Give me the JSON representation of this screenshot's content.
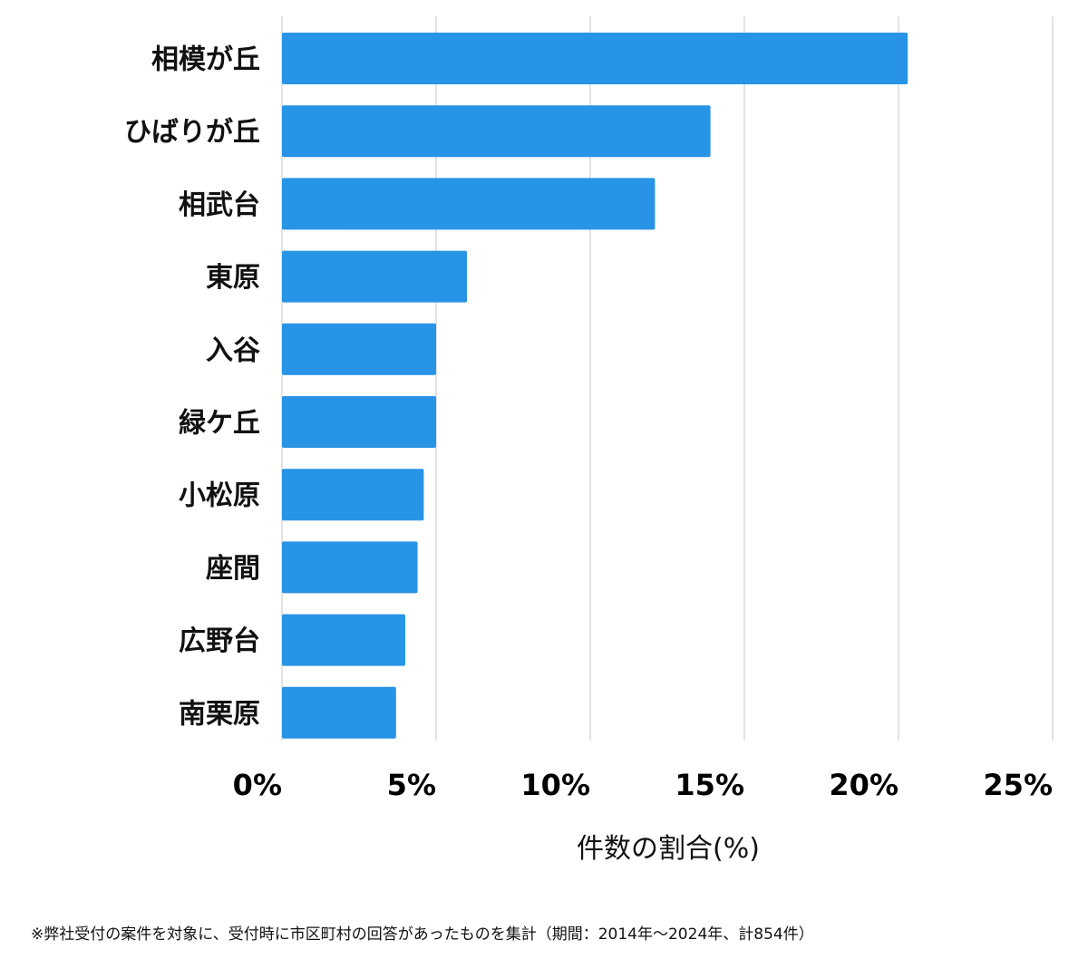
{
  "chart_data": {
    "type": "bar",
    "orientation": "horizontal",
    "categories": [
      "相模が丘",
      "ひばりが丘",
      "相武台",
      "東原",
      "入谷",
      "緑ケ丘",
      "小松原",
      "座間",
      "広野台",
      "南栗原"
    ],
    "values": [
      20.3,
      13.9,
      12.1,
      6.0,
      5.0,
      5.0,
      4.6,
      4.4,
      4.0,
      3.7
    ],
    "xlabel": "件数の割合(%)",
    "ylabel": "",
    "xlim": [
      0,
      25
    ],
    "ticks": [
      0,
      5,
      10,
      15,
      20,
      25
    ],
    "tick_labels": [
      "0%",
      "5%",
      "10%",
      "15%",
      "20%",
      "25%"
    ],
    "grid": "vertical",
    "bar_color": "#2794e6",
    "grid_color": "#d0d0d0"
  },
  "footnote": "※弊社受付の案件を対象に、受付時に市区町村の回答があったものを集計（期間：2014年～2024年、計854件）"
}
